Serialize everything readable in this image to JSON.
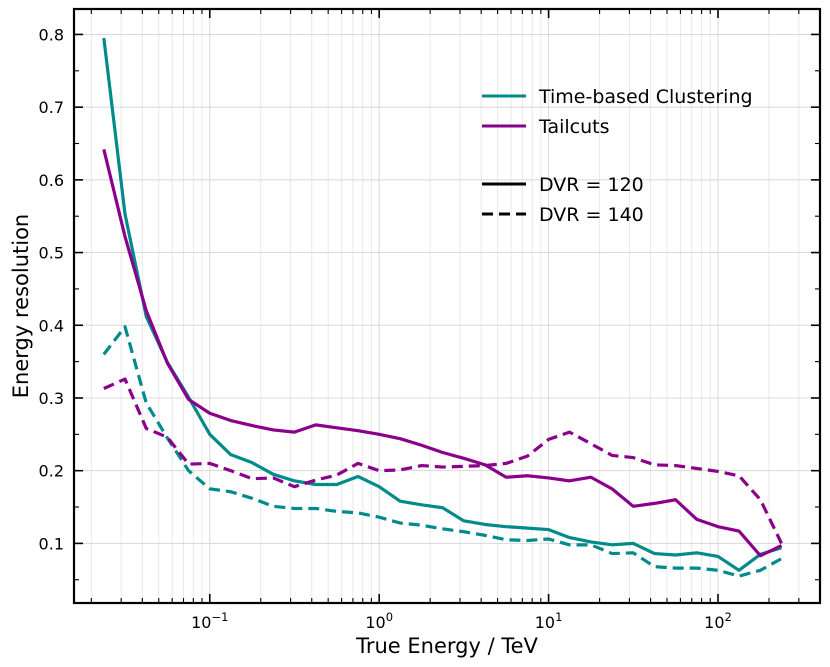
{
  "chart_data": {
    "type": "line",
    "title": "",
    "xlabel": "True Energy / TeV",
    "ylabel": "Energy resolution",
    "xscale": "log",
    "xlim": [
      0.0158,
      400
    ],
    "ylim": [
      0.018,
      0.835
    ],
    "grid": true,
    "legend_position": "top-right",
    "x_ticks": [
      {
        "value": 0.1,
        "base": "10",
        "exp": "−1"
      },
      {
        "value": 1,
        "base": "10",
        "exp": "0"
      },
      {
        "value": 10,
        "base": "10",
        "exp": "1"
      },
      {
        "value": 100,
        "base": "10",
        "exp": "2"
      }
    ],
    "y_ticks": [
      {
        "value": 0.1,
        "label": "0.1"
      },
      {
        "value": 0.2,
        "label": "0.2"
      },
      {
        "value": 0.3,
        "label": "0.3"
      },
      {
        "value": 0.4,
        "label": "0.4"
      },
      {
        "value": 0.5,
        "label": "0.5"
      },
      {
        "value": 0.6,
        "label": "0.6"
      },
      {
        "value": 0.7,
        "label": "0.7"
      },
      {
        "value": 0.8,
        "label": "0.8"
      }
    ],
    "legend": {
      "colors": [
        {
          "label": "Time-based Clustering",
          "color": "#008b8b"
        },
        {
          "label": "Tailcuts",
          "color": "#8b008b"
        }
      ],
      "styles": [
        {
          "label": "DVR = 120",
          "dash": "solid",
          "color": "#000000"
        },
        {
          "label": "DVR = 140",
          "dash": "dashed",
          "color": "#000000"
        }
      ]
    },
    "series": [
      {
        "color": "#008b8b",
        "dash": "solid",
        "x": [
          0.0237,
          0.0316,
          0.0422,
          0.0562,
          0.075,
          0.1,
          0.133,
          0.178,
          0.237,
          0.316,
          0.422,
          0.562,
          0.75,
          1.0,
          1.33,
          1.78,
          2.37,
          3.16,
          4.22,
          5.62,
          7.5,
          10,
          13.3,
          17.8,
          23.7,
          31.6,
          42.2,
          56.2,
          75,
          100,
          133,
          178,
          237
        ],
        "y": [
          0.795,
          0.553,
          0.412,
          0.349,
          0.301,
          0.25,
          0.222,
          0.211,
          0.195,
          0.186,
          0.181,
          0.181,
          0.192,
          0.178,
          0.158,
          0.153,
          0.149,
          0.131,
          0.126,
          0.123,
          0.121,
          0.119,
          0.108,
          0.102,
          0.098,
          0.1,
          0.086,
          0.084,
          0.087,
          0.082,
          0.063,
          0.085,
          0.094
        ]
      },
      {
        "color": "#8b008b",
        "dash": "solid",
        "x": [
          0.0237,
          0.0316,
          0.0422,
          0.0562,
          0.075,
          0.1,
          0.133,
          0.178,
          0.237,
          0.316,
          0.422,
          0.562,
          0.75,
          1.0,
          1.33,
          1.78,
          2.37,
          3.16,
          4.22,
          5.62,
          7.5,
          10,
          13.3,
          17.8,
          23.7,
          31.6,
          42.2,
          56.2,
          75,
          100,
          133,
          178,
          237
        ],
        "y": [
          0.642,
          0.522,
          0.42,
          0.348,
          0.298,
          0.279,
          0.269,
          0.262,
          0.256,
          0.253,
          0.263,
          0.259,
          0.255,
          0.25,
          0.244,
          0.235,
          0.225,
          0.217,
          0.208,
          0.191,
          0.193,
          0.19,
          0.186,
          0.191,
          0.175,
          0.151,
          0.155,
          0.16,
          0.133,
          0.123,
          0.117,
          0.083,
          0.097
        ]
      },
      {
        "color": "#008b8b",
        "dash": "dashed",
        "x": [
          0.0237,
          0.0316,
          0.0422,
          0.0562,
          0.075,
          0.1,
          0.133,
          0.178,
          0.237,
          0.316,
          0.422,
          0.562,
          0.75,
          1.0,
          1.33,
          1.78,
          2.37,
          3.16,
          4.22,
          5.62,
          7.5,
          10,
          13.3,
          17.8,
          23.7,
          31.6,
          42.2,
          56.2,
          75,
          100,
          133,
          178,
          237
        ],
        "y": [
          0.36,
          0.398,
          0.293,
          0.245,
          0.2,
          0.175,
          0.171,
          0.162,
          0.151,
          0.148,
          0.148,
          0.144,
          0.142,
          0.136,
          0.128,
          0.125,
          0.12,
          0.116,
          0.111,
          0.105,
          0.104,
          0.106,
          0.098,
          0.098,
          0.086,
          0.087,
          0.068,
          0.066,
          0.066,
          0.063,
          0.055,
          0.063,
          0.079
        ]
      },
      {
        "color": "#8b008b",
        "dash": "dashed",
        "x": [
          0.0237,
          0.0316,
          0.0422,
          0.0562,
          0.075,
          0.1,
          0.133,
          0.178,
          0.237,
          0.316,
          0.422,
          0.562,
          0.75,
          1.0,
          1.33,
          1.78,
          2.37,
          3.16,
          4.22,
          5.62,
          7.5,
          10,
          13.3,
          17.8,
          23.7,
          31.6,
          42.2,
          56.2,
          75,
          100,
          133,
          178,
          237
        ],
        "y": [
          0.313,
          0.326,
          0.258,
          0.246,
          0.209,
          0.21,
          0.2,
          0.189,
          0.19,
          0.178,
          0.187,
          0.194,
          0.21,
          0.2,
          0.201,
          0.207,
          0.205,
          0.206,
          0.207,
          0.21,
          0.22,
          0.243,
          0.253,
          0.237,
          0.221,
          0.218,
          0.208,
          0.207,
          0.203,
          0.199,
          0.193,
          0.16,
          0.1
        ]
      }
    ]
  }
}
